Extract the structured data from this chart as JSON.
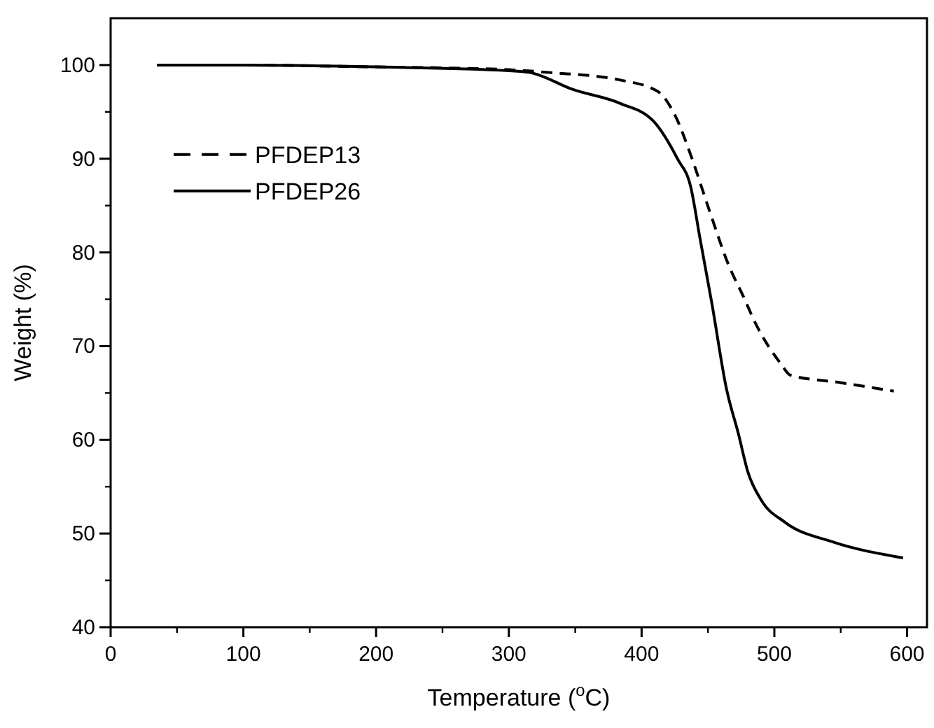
{
  "chart_data": {
    "type": "line",
    "xlabel": "Temperature ($^{o}$C)",
    "ylabel": "Weight (%)",
    "xlim": [
      0,
      615
    ],
    "ylim": [
      40,
      105
    ],
    "xticks": [
      0,
      100,
      200,
      300,
      400,
      500,
      600
    ],
    "yticks": [
      40,
      50,
      60,
      70,
      80,
      90,
      100
    ],
    "legend": "top left",
    "grid": false,
    "series": [
      {
        "name": "PFDEP13",
        "color": "#000000",
        "line_style": "dashed",
        "x": [
          35,
          100,
          200,
          250,
          300,
          331,
          384,
          412,
          426,
          437,
          451,
          466,
          476,
          487,
          505,
          512,
          550,
          590
        ],
        "values": [
          100,
          100,
          99.8,
          99.7,
          99.5,
          99.2,
          98.4,
          97.2,
          94.4,
          90.4,
          84.5,
          78.5,
          75.5,
          72.1,
          68.1,
          66.9,
          66.1,
          65.2
        ]
      },
      {
        "name": "PFDEP26",
        "color": "#000000",
        "line_style": "solid",
        "x": [
          35,
          100,
          200,
          300,
          316,
          348,
          384,
          409,
          427,
          437,
          444,
          453,
          464,
          473,
          480,
          490,
          508,
          544,
          597
        ],
        "values": [
          100,
          100,
          99.8,
          99.4,
          99.2,
          97.4,
          95.9,
          94,
          90,
          87,
          81.5,
          74.5,
          65.4,
          60.6,
          56.6,
          53.6,
          51.2,
          49.1,
          47.4
        ]
      }
    ]
  }
}
